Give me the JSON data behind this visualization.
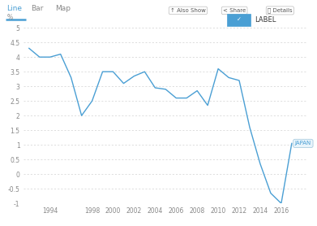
{
  "years": [
    1992,
    1993,
    1994,
    1995,
    1996,
    1997,
    1998,
    1999,
    2000,
    2001,
    2002,
    2003,
    2004,
    2005,
    2006,
    2007,
    2008,
    2009,
    2010,
    2011,
    2012,
    2013,
    2014,
    2015,
    2016,
    2017
  ],
  "values": [
    4.3,
    4.0,
    4.0,
    4.1,
    3.3,
    2.0,
    2.5,
    3.5,
    3.5,
    3.1,
    3.35,
    3.5,
    2.95,
    2.9,
    2.6,
    2.6,
    2.85,
    2.35,
    3.6,
    3.3,
    3.2,
    1.6,
    0.35,
    -0.65,
    -1.0,
    1.05
  ],
  "line_color": "#4a9fd4",
  "bg_color": "#ffffff",
  "plot_bg_color": "#ffffff",
  "ylabel": "%",
  "ylim": [
    -1.0,
    5.0
  ],
  "yticks": [
    -1.0,
    -0.5,
    0.0,
    0.5,
    1.0,
    1.5,
    2.0,
    2.5,
    3.0,
    3.5,
    4.0,
    4.5,
    5.0
  ],
  "xticks": [
    1994,
    1998,
    2000,
    2002,
    2004,
    2006,
    2008,
    2010,
    2012,
    2014,
    2016
  ],
  "xlim": [
    1991.5,
    2018.5
  ],
  "grid_color": "#d0d0d0",
  "label_text": "JAPAN",
  "label_color": "#4a9fd4",
  "label_box_color": "#e8f4fb",
  "tab_items": [
    "Line",
    "Bar",
    "Map"
  ],
  "active_tab": "Line",
  "top_buttons": [
    "↑ Also Show",
    "< Share",
    "ⓘ Details"
  ],
  "legend_label": "LABEL",
  "title_color": "#333333",
  "tick_fontsize": 5.5,
  "line_width": 1.0,
  "nav_bg": "#f8f8f8",
  "nav_border": "#e0e0e0"
}
